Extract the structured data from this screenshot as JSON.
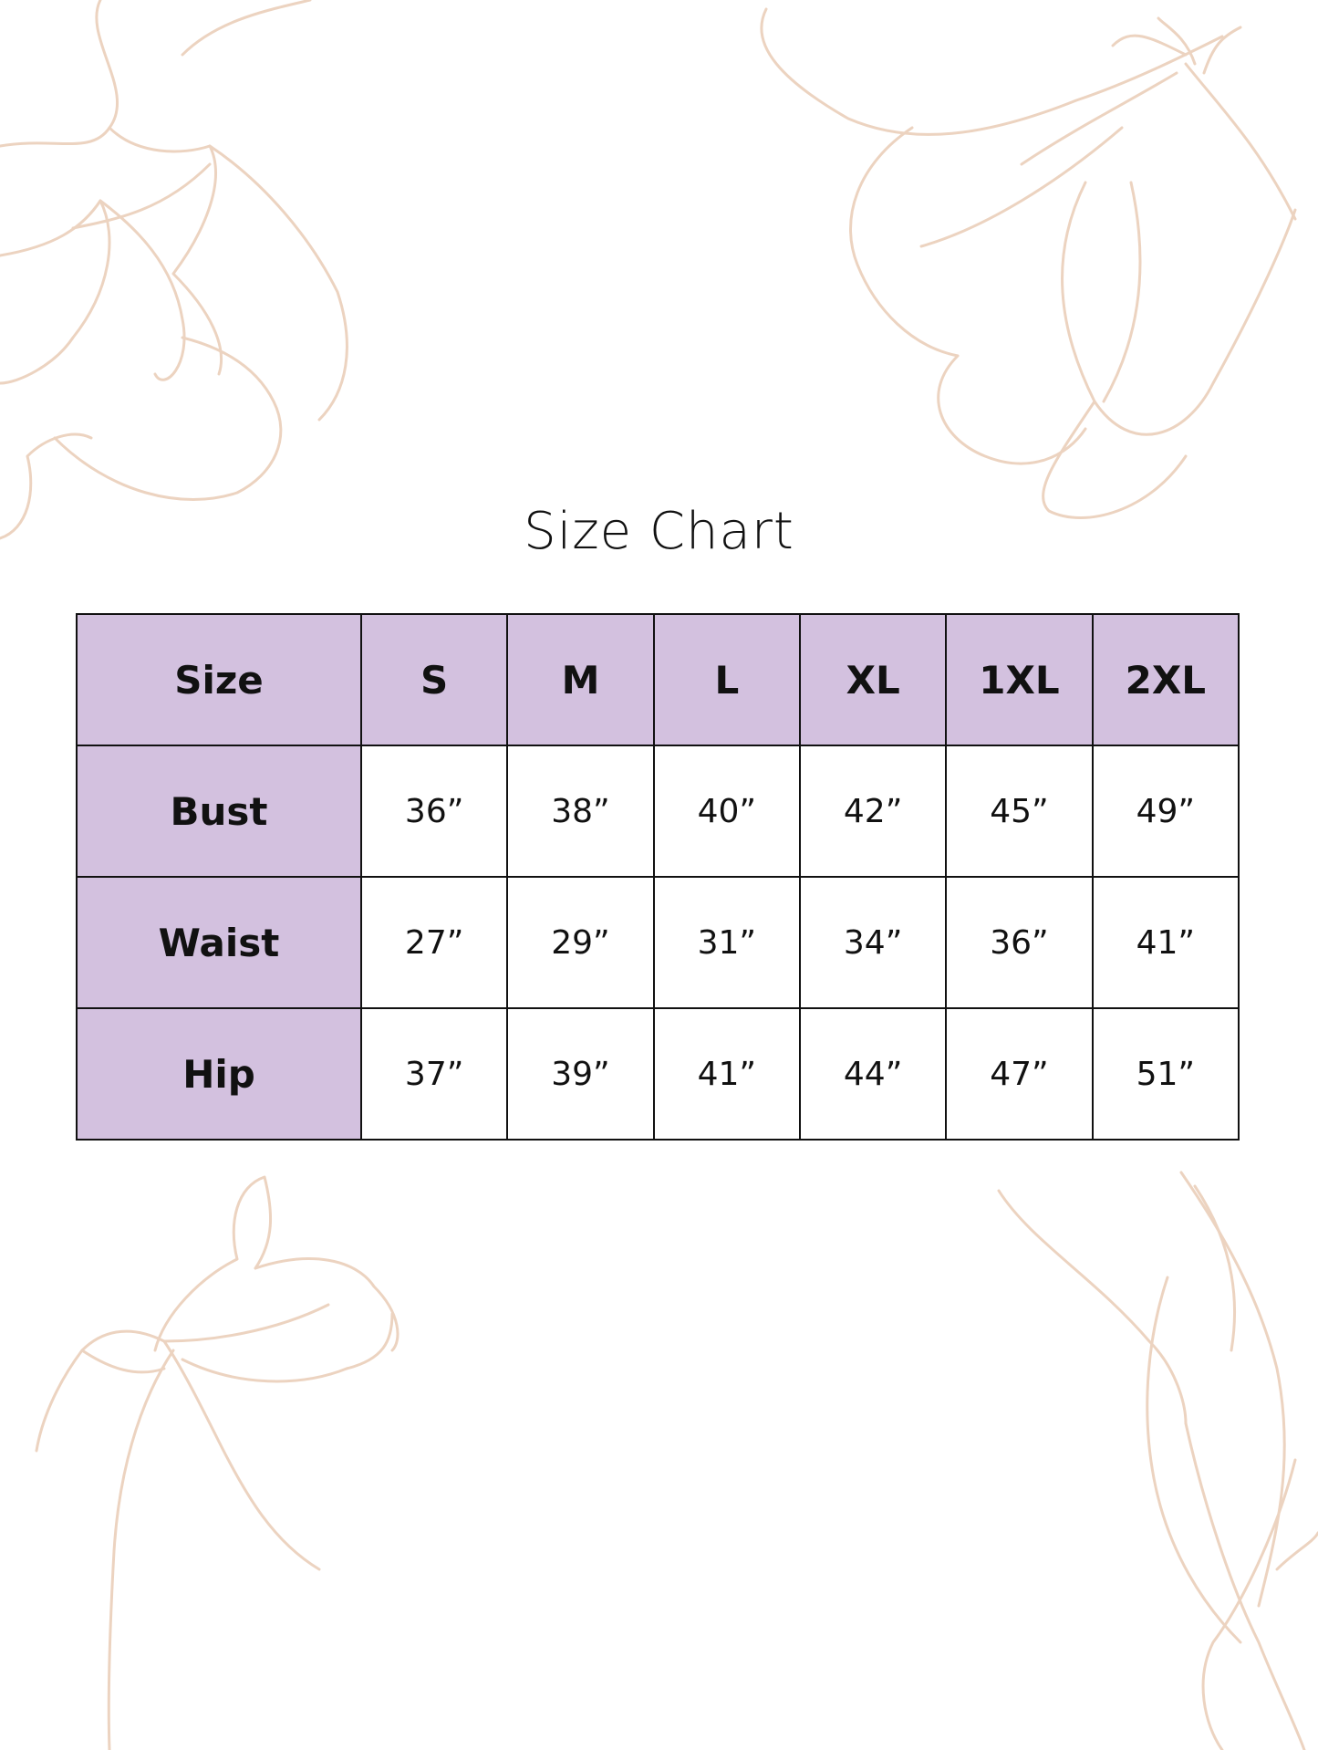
{
  "title": "Size Chart",
  "colors": {
    "header_fill": "#d3c1df",
    "border": "#111111",
    "floral_line": "#ecd3c0"
  },
  "table": {
    "header": [
      "Size",
      "S",
      "M",
      "L",
      "XL",
      "1XL",
      "2XL"
    ],
    "rows": [
      {
        "label": "Bust",
        "values": [
          "36”",
          "38”",
          "40”",
          "42”",
          "45”",
          "49”"
        ]
      },
      {
        "label": "Waist",
        "values": [
          "27”",
          "29”",
          "31”",
          "34”",
          "36”",
          "41”"
        ]
      },
      {
        "label": "Hip",
        "values": [
          "37”",
          "39”",
          "41”",
          "44”",
          "47”",
          "51”"
        ]
      }
    ]
  }
}
